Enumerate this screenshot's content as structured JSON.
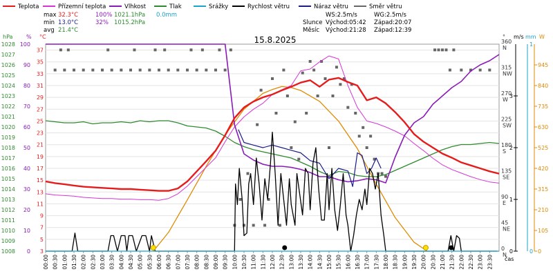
{
  "chart_data": {
    "type": "line",
    "title": "15.8.2025",
    "legend": [
      {
        "name": "Teplota",
        "color": "#e51c1c"
      },
      {
        "name": "Přízemní teplota",
        "color": "#d633d6"
      },
      {
        "name": "Vlhkost",
        "color": "#8a1ab8"
      },
      {
        "name": "Tlak",
        "color": "#2f8a2f"
      },
      {
        "name": "Srážky",
        "color": "#1aa3c8"
      },
      {
        "name": "Rychlost větru",
        "color": "#000000"
      },
      {
        "name": "Náraz větru",
        "color": "#1a1a8a"
      },
      {
        "name": "Směr větru",
        "color": "#666666"
      }
    ],
    "stats": {
      "max_label": "max",
      "max_temp": "32.3°C",
      "max_hum": "100%",
      "max_press": "1021.1hPa",
      "max_rain": "0.0mm",
      "min_label": "min",
      "min_temp": "13.0°C",
      "min_hum": "32%",
      "min_press": "1015.2hPa",
      "avg_label": "avg",
      "avg_temp": "21.4°C",
      "ws": "WS:2.5m/s",
      "wg": "WG:2.5m/s",
      "sun_label": "Slunce",
      "sun_rise": "Východ:05:42",
      "sun_set": "Západ:20:07",
      "moon_label": "Měsíc",
      "moon_rise": "Východ:21:28",
      "moon_set": "Západ:12:39"
    },
    "axes": {
      "hpa_unit": "hPa",
      "pct_unit": "%",
      "temp_unit": "°C",
      "deg_unit": "°",
      "ms_unit": "m/s",
      "w_unit": "W",
      "mm_unit": "mm",
      "x_label": "čas",
      "hpa_ticks": [
        "1008",
        "1009",
        "1010",
        "1011",
        "1012",
        "1013",
        "1014",
        "1015",
        "1016",
        "1017",
        "1018",
        "1019",
        "1020",
        "1021",
        "1022",
        "1023",
        "1024",
        "1025",
        "1026",
        "1027",
        "1028"
      ],
      "pct_ticks": [
        "0",
        "10",
        "20",
        "30",
        "40",
        "50",
        "60",
        "70",
        "80",
        "90",
        "100"
      ],
      "temp_ticks": [
        "3",
        "5",
        "7",
        "9",
        "11",
        "13",
        "15",
        "17",
        "19",
        "21",
        "23",
        "25",
        "27",
        "29",
        "31",
        "33",
        "35",
        "37"
      ],
      "dir_ticks": [
        {
          "deg": 0,
          "num": "0",
          "lab": "N"
        },
        {
          "deg": 45,
          "num": "45",
          "lab": "NE"
        },
        {
          "deg": 90,
          "num": "90",
          "lab": "E"
        },
        {
          "deg": 135,
          "num": "135",
          "lab": "SE"
        },
        {
          "deg": 180,
          "num": "180",
          "lab": "S"
        },
        {
          "deg": 225,
          "num": "225",
          "lab": "SW"
        },
        {
          "deg": 270,
          "num": "270",
          "lab": "W"
        },
        {
          "deg": 315,
          "num": "315",
          "lab": "NW"
        },
        {
          "deg": 360,
          "num": "360",
          "lab": "N"
        }
      ],
      "ms_ticks": [
        "0",
        "1",
        "2",
        "3"
      ],
      "w_ticks": [
        "0",
        "105",
        "210",
        "315",
        "420",
        "525",
        "630",
        "735",
        "840",
        "945"
      ],
      "mm_ticks": [
        "0",
        "1"
      ],
      "temp_range": [
        3,
        38
      ],
      "ms_range": [
        0,
        4
      ],
      "w_range": [
        0,
        1050
      ],
      "dir_range": [
        0,
        360
      ]
    },
    "x_ticks": [
      "00:00",
      "00:30",
      "01:00",
      "01:30",
      "02:00",
      "02:30",
      "03:00",
      "03:30",
      "04:00",
      "04:30",
      "05:00",
      "05:30",
      "06:00",
      "06:30",
      "07:00",
      "07:30",
      "08:00",
      "08:30",
      "09:00",
      "09:30",
      "10:00",
      "10:30",
      "11:00",
      "11:30",
      "12:00",
      "12:30",
      "13:00",
      "13:30",
      "14:00",
      "14:30",
      "15:00",
      "15:30",
      "16:00",
      "16:30",
      "17:00",
      "17:30",
      "18:00",
      "18:30",
      "19:00",
      "19:30",
      "20:00",
      "20:30",
      "21:00",
      "21:30",
      "22:00",
      "22:30",
      "23:00",
      "23:30"
    ],
    "hours": [
      0,
      0.5,
      1,
      1.5,
      2,
      2.5,
      3,
      3.5,
      4,
      4.5,
      5,
      5.5,
      6,
      6.5,
      7,
      7.5,
      8,
      8.5,
      9,
      9.5,
      10,
      10.5,
      11,
      11.5,
      12,
      12.5,
      13,
      13.5,
      14,
      14.5,
      15,
      15.5,
      16,
      16.5,
      17,
      17.5,
      18,
      18.5,
      19,
      19.5,
      20,
      20.5,
      21,
      21.5,
      22,
      22.5,
      23,
      23.5,
      24
    ],
    "temperature": [
      14.8,
      14.5,
      14.3,
      14.1,
      13.9,
      13.8,
      13.7,
      13.6,
      13.5,
      13.5,
      13.4,
      13.3,
      13.2,
      13.2,
      13.6,
      14.8,
      16.5,
      18.2,
      20.0,
      22.6,
      25.5,
      27.3,
      28.3,
      29.0,
      29.5,
      30.2,
      30.8,
      31.5,
      31.9,
      30.8,
      32.0,
      32.3,
      31.6,
      31.0,
      28.5,
      29.0,
      28.0,
      26.5,
      24.8,
      22.8,
      21.5,
      20.5,
      19.5,
      18.8,
      18.0,
      17.5,
      17.0,
      16.5,
      16.1
    ],
    "ground_temperature": [
      12.7,
      12.5,
      12.4,
      12.3,
      12.1,
      12.0,
      11.9,
      11.9,
      11.8,
      11.8,
      11.7,
      11.7,
      11.6,
      11.9,
      12.7,
      14.0,
      15.6,
      17.2,
      18.8,
      21.5,
      24.0,
      25.7,
      27.0,
      28.0,
      29.5,
      30.3,
      31.0,
      33.5,
      33.8,
      35.0,
      36.0,
      35.5,
      31.0,
      27.3,
      25.0,
      24.6,
      24.0,
      23.3,
      22.5,
      21.2,
      20.0,
      18.7,
      17.6,
      16.8,
      16.2,
      15.6,
      15.1,
      14.7,
      14.5
    ],
    "humidity": [
      100,
      100,
      100,
      100,
      100,
      100,
      100,
      100,
      100,
      100,
      100,
      100,
      100,
      100,
      100,
      100,
      100,
      100,
      100,
      100,
      61,
      47,
      44,
      42,
      41,
      41,
      40.5,
      39.5,
      38,
      36,
      36,
      34.5,
      33.5,
      34,
      35,
      34.5,
      33,
      45.5,
      56,
      62,
      65,
      71,
      75,
      79,
      82,
      87,
      90,
      92,
      95
    ],
    "pressure": [
      1020.6,
      1020.5,
      1020.4,
      1020.4,
      1020.5,
      1020.3,
      1020.4,
      1020.4,
      1020.5,
      1020.4,
      1020.6,
      1020.5,
      1020.6,
      1020.6,
      1020.4,
      1020.1,
      1020.0,
      1019.9,
      1019.6,
      1019.1,
      1018.5,
      1018.1,
      1017.8,
      1017.6,
      1017.4,
      1017.2,
      1017.0,
      1016.6,
      1016.2,
      1015.7,
      1015.3,
      1015.7,
      1015.6,
      1015.3,
      1015.2,
      1015.2,
      1015.4,
      1015.8,
      1016.2,
      1016.6,
      1017.0,
      1017.4,
      1017.8,
      1018.1,
      1018.3,
      1018.3,
      1018.4,
      1018.5,
      1018.4
    ],
    "wind_speed": {
      "hours": [
        0,
        1.4,
        1.55,
        1.7,
        3.3,
        3.45,
        3.6,
        3.8,
        4.0,
        4.2,
        4.3,
        4.4,
        4.6,
        4.8,
        5.1,
        5.3,
        5.5,
        5.6,
        5.8,
        7,
        10.0,
        10.05,
        10.15,
        10.25,
        10.4,
        10.5,
        10.65,
        10.75,
        10.85,
        11.0,
        11.15,
        11.3,
        11.45,
        11.6,
        11.75,
        11.9,
        12.0,
        12.15,
        12.3,
        12.45,
        12.6,
        12.75,
        12.9,
        13.0,
        13.2,
        13.3,
        13.45,
        13.6,
        13.75,
        13.9,
        14.0,
        14.15,
        14.3,
        14.45,
        14.6,
        14.75,
        14.9,
        15.0,
        15.15,
        15.3,
        15.45,
        15.6,
        15.75,
        15.9,
        16.0,
        16.15,
        16.3,
        16.45,
        16.6,
        16.75,
        16.9,
        17.0,
        17.15,
        17.3,
        17.45,
        17.6,
        17.75,
        17.9,
        18.0,
        18.1,
        21.3,
        21.45,
        21.6,
        21.75,
        21.9,
        22.0,
        23.9
      ],
      "values": [
        0,
        0,
        0.35,
        0,
        0,
        0.3,
        0.3,
        0,
        0.3,
        0.3,
        0,
        0.3,
        0.3,
        0,
        0.3,
        0.3,
        0,
        0.3,
        0,
        0,
        0,
        1.3,
        0.9,
        1.6,
        1.0,
        0.3,
        0.35,
        1.3,
        1.5,
        0.9,
        1.8,
        1.3,
        0.6,
        1.4,
        1.0,
        1.7,
        2.3,
        1.5,
        0.5,
        1.5,
        1.0,
        0.5,
        1.4,
        0.9,
        0.5,
        1.5,
        1.1,
        0.7,
        1.6,
        1.5,
        0.8,
        1.7,
        2.0,
        1.2,
        0.6,
        0.6,
        1.5,
        0.8,
        1.6,
        0.8,
        0.4,
        0.9,
        1.5,
        0.7,
        0.5,
        0,
        0.3,
        0.7,
        1.0,
        0.8,
        1.2,
        0.9,
        1.6,
        1.5,
        1.2,
        1.5,
        0.7,
        0.3,
        0,
        0,
        0,
        0.3,
        0,
        0.3,
        0.25,
        0,
        0
      ]
    },
    "wind_gust": {
      "hours": [
        10.2,
        10.5,
        11.0,
        11.5,
        12.0,
        12.5,
        13.0,
        13.5,
        14.0,
        14.5,
        15.0,
        15.5,
        16.0,
        16.25,
        16.5,
        16.75,
        17.0,
        17.25,
        17.5,
        17.75
      ],
      "values": [
        2.35,
        2.1,
        2.05,
        2.0,
        2.05,
        2.0,
        1.95,
        1.9,
        1.75,
        1.7,
        1.4,
        1.6,
        1.55,
        1.25,
        1.9,
        1.85,
        1.5,
        1.6,
        1.8,
        1.6
      ]
    },
    "solar_radiation": {
      "hours": [
        5.7,
        6.5,
        7.5,
        8.5,
        9.5,
        10.5,
        11.5,
        12.0,
        12.5,
        13.0,
        13.5,
        14.5,
        15.5,
        16.5,
        17.5,
        18.5,
        19.5,
        20.2
      ],
      "values": [
        0,
        95,
        260,
        430,
        590,
        720,
        800,
        820,
        835,
        830,
        815,
        760,
        660,
        520,
        340,
        170,
        45,
        0
      ]
    },
    "rain": {
      "hours": [
        0,
        24
      ],
      "values": [
        0,
        0
      ]
    },
    "wind_direction": {
      "hours": [
        0.5,
        1.0,
        1.5,
        2.0,
        2.5,
        3.0,
        3.5,
        4.0,
        4.5,
        5.0,
        5.5,
        6.0,
        6.5,
        7.0,
        7.5,
        8.0,
        8.5,
        9.0,
        9.5,
        0.8,
        1.2,
        3.3,
        4.7,
        5.8,
        6.3,
        7.7,
        8.3,
        9.2,
        9.8,
        10.0,
        10.3,
        10.5,
        10.7,
        11.0,
        11.2,
        11.4,
        11.6,
        11.8,
        12.0,
        12.2,
        12.4,
        12.6,
        12.8,
        13.0,
        13.2,
        13.4,
        13.6,
        13.8,
        14.0,
        14.2,
        14.4,
        14.6,
        14.8,
        15.0,
        15.2,
        15.4,
        15.6,
        15.8,
        16.0,
        16.2,
        16.4,
        16.6,
        16.8,
        17.0,
        17.2,
        17.4,
        17.6,
        17.8,
        18.0,
        20.6,
        20.8,
        21.0,
        21.2,
        21.4,
        21.6,
        22.0,
        22.5,
        23.0,
        23.5
      ],
      "values": [
        315,
        315,
        315,
        315,
        315,
        315,
        315,
        315,
        315,
        315,
        315,
        315,
        315,
        315,
        315,
        315,
        315,
        315,
        315,
        350,
        350,
        350,
        350,
        350,
        350,
        350,
        350,
        350,
        350,
        45,
        90,
        45,
        135,
        45,
        220,
        280,
        45,
        90,
        300,
        240,
        45,
        315,
        270,
        180,
        225,
        160,
        310,
        240,
        330,
        315,
        270,
        330,
        300,
        180,
        270,
        320,
        290,
        300,
        250,
        290,
        240,
        200,
        215,
        180,
        200,
        160,
        135,
        135,
        130,
        350,
        350,
        350,
        350,
        315,
        350,
        315,
        315,
        315,
        315
      ]
    },
    "icons": [
      {
        "name": "sunrise",
        "hour": 5.7
      },
      {
        "name": "moonset",
        "hour": 12.65
      },
      {
        "name": "sunset",
        "hour": 20.12
      },
      {
        "name": "moonrise",
        "hour": 21.47
      }
    ]
  }
}
